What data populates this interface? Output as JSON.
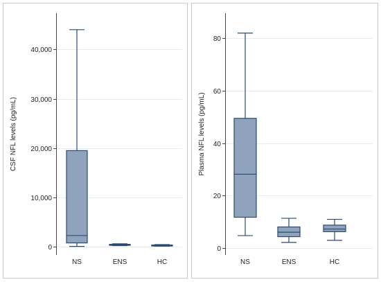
{
  "chart_data": [
    {
      "type": "box",
      "ylabel": "CSF NFL levels (pg/mL)",
      "xlabel": "",
      "ylim": [
        -800,
        46500
      ],
      "yticks": [
        0,
        10000,
        20000,
        30000,
        40000
      ],
      "ytick_labels": [
        "0",
        "10,000",
        "20,000",
        "30,000",
        "40,000"
      ],
      "grid": true,
      "categories": [
        "NS",
        "ENS",
        "HC"
      ],
      "boxes": [
        {
          "category": "NS",
          "min": 100,
          "q1": 800,
          "median": 2300,
          "q3": 19500,
          "max": 44000
        },
        {
          "category": "ENS",
          "min": 250,
          "q1": 350,
          "median": 450,
          "q3": 520,
          "max": 620
        },
        {
          "category": "HC",
          "min": 150,
          "q1": 230,
          "median": 300,
          "q3": 380,
          "max": 470
        }
      ]
    },
    {
      "type": "box",
      "ylabel": "Plasma NFL levels (pg/mL)",
      "xlabel": "",
      "ylim": [
        -1,
        88
      ],
      "yticks": [
        0,
        20,
        40,
        60,
        80
      ],
      "ytick_labels": [
        "0",
        "20",
        "40",
        "60",
        "80"
      ],
      "grid": true,
      "categories": [
        "NS",
        "ENS",
        "HC"
      ],
      "boxes": [
        {
          "category": "NS",
          "min": 4.8,
          "q1": 11.8,
          "median": 28.2,
          "q3": 49.5,
          "max": 82.0
        },
        {
          "category": "ENS",
          "min": 2.2,
          "q1": 4.4,
          "median": 6.1,
          "q3": 8.1,
          "max": 11.4
        },
        {
          "category": "HC",
          "min": 3.0,
          "q1": 6.3,
          "median": 7.3,
          "q3": 8.8,
          "max": 11.0
        }
      ]
    }
  ],
  "style": {
    "box_fill": "#8fa3bc",
    "box_stroke": "#2a4a70",
    "whisker_color": "#2a4a70",
    "grid_color": "#e8ecf0",
    "frame_color": "#c8c8c8",
    "background": "#ffffff"
  }
}
